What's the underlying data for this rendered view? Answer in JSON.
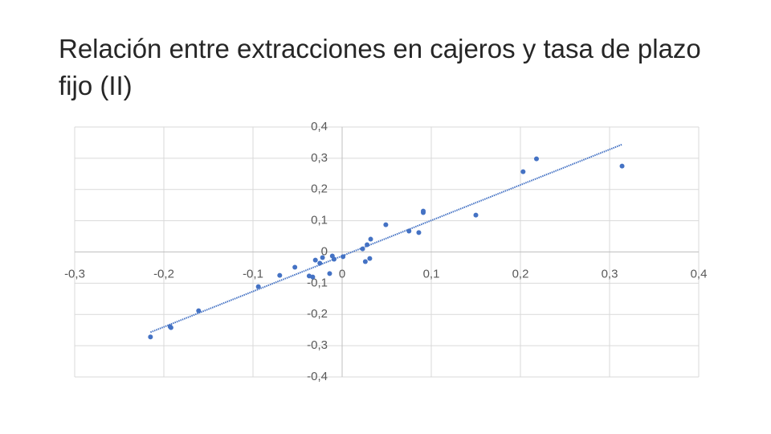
{
  "chart_data": {
    "type": "scatter",
    "title": "Relación entre extracciones en cajeros y tasa de plazo fijo (II)",
    "series": [
      {
        "color": "#4472c4",
        "x": [
          -0.215,
          -0.193,
          -0.192,
          -0.161,
          -0.094,
          -0.07,
          -0.053,
          -0.037,
          -0.033,
          -0.03,
          -0.025,
          -0.022,
          -0.014,
          -0.011,
          -0.009,
          0.001,
          0.023,
          0.026,
          0.028,
          0.031,
          0.032,
          0.049,
          0.075,
          0.086,
          0.091,
          0.091,
          0.15,
          0.203,
          0.218,
          0.314
        ],
        "values": [
          -0.272,
          -0.239,
          -0.242,
          -0.188,
          -0.111,
          -0.075,
          -0.049,
          -0.077,
          -0.08,
          -0.026,
          -0.036,
          -0.018,
          -0.069,
          -0.013,
          -0.023,
          -0.015,
          0.01,
          -0.031,
          0.023,
          -0.021,
          0.041,
          0.087,
          0.067,
          0.062,
          0.131,
          0.126,
          0.118,
          0.257,
          0.298,
          0.275
        ]
      }
    ],
    "trendline": {
      "x": [
        -0.215,
        0.314
      ],
      "values": [
        -0.257,
        0.344
      ],
      "color": "#4472c4"
    },
    "xlim": [
      -0.3,
      0.4
    ],
    "xticks": [
      {
        "value": -0.3,
        "label": "-0,3"
      },
      {
        "value": -0.2,
        "label": "-0,2"
      },
      {
        "value": -0.1,
        "label": "-0,1"
      },
      0,
      {
        "value": 0.1,
        "label": "0,1"
      },
      {
        "value": 0.2,
        "label": "0,2"
      },
      {
        "value": 0.3,
        "label": "0,3"
      },
      {
        "value": 0.4,
        "label": "0,4"
      }
    ],
    "ylim": [
      -0.4,
      0.4
    ],
    "yticks": [
      {
        "value": -0.4,
        "label": "-0,4"
      },
      {
        "value": -0.3,
        "label": "-0,3"
      },
      {
        "value": -0.2,
        "label": "-0,2"
      },
      {
        "value": -0.1,
        "label": "-0,1"
      },
      0,
      {
        "value": 0.1,
        "label": "0,1"
      },
      {
        "value": 0.2,
        "label": "0,2"
      },
      {
        "value": 0.3,
        "label": "0,3"
      },
      {
        "value": 0.4,
        "label": "0,4"
      }
    ],
    "grid": true
  }
}
